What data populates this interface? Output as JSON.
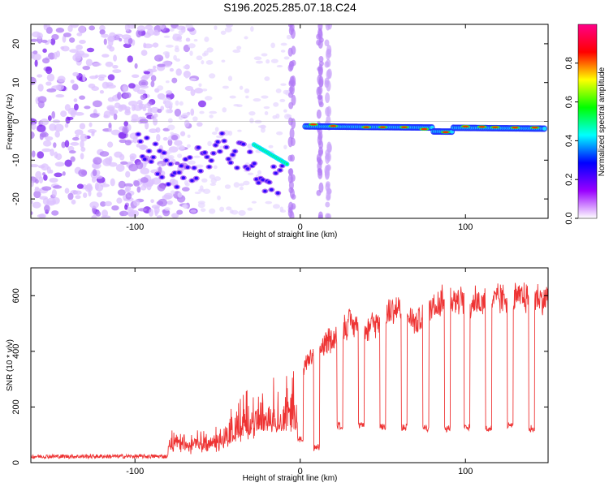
{
  "chart_data": [
    {
      "type": "heatmap",
      "title": "S196.2025.285.07.18.C24",
      "xlabel": "Height of straight line (km)",
      "ylabel": "Frequency (Hz)",
      "xlim": [
        -163,
        150
      ],
      "ylim": [
        -25,
        25
      ],
      "xticks": [
        -100,
        0,
        100
      ],
      "xtick_labels": [
        "-100",
        "0",
        "100"
      ],
      "yticks": [
        -20,
        -10,
        0,
        10,
        20
      ],
      "ytick_labels": [
        "-20",
        "-10",
        "0",
        "10",
        "20"
      ],
      "colorbar": {
        "label": "Normalized spectral amplitude",
        "range": [
          0,
          1
        ],
        "ticks": [
          0.0,
          0.2,
          0.4,
          0.6,
          0.8
        ],
        "tick_labels": [
          "0.0",
          "0.2",
          "0.4",
          "0.6",
          "0.8"
        ],
        "colors": [
          "#ffffff",
          "#9900ff",
          "#0000ff",
          "#00ffff",
          "#00ff00",
          "#ffff00",
          "#ff0000",
          "#ff0088"
        ]
      },
      "ridge": {
        "description_points_x": [
          -95,
          -80,
          -70,
          -60,
          -45,
          -35,
          -25,
          -15,
          -10,
          5,
          10,
          20,
          40,
          60,
          75,
          85,
          95,
          110,
          130,
          148
        ],
        "description_points_freq": [
          -13,
          -9,
          -11,
          -13,
          -7,
          -3,
          -9,
          -11,
          -10,
          -1,
          -1,
          -1.5,
          -1.5,
          -1.5,
          -2,
          -3,
          -1.5,
          -1.5,
          -2,
          -2
        ]
      }
    },
    {
      "type": "line",
      "xlabel": "Height of straight line (km)",
      "ylabel": "SNR (10 * v/v)",
      "xlim": [
        -163,
        150
      ],
      "ylim": [
        0,
        700
      ],
      "xticks": [
        -100,
        0,
        100
      ],
      "xtick_labels": [
        "-100",
        "0",
        "100"
      ],
      "yticks": [
        0,
        200,
        400,
        600
      ],
      "ytick_labels": [
        "0",
        "200",
        "400",
        "600"
      ],
      "line_color": "#ee3333",
      "envelope": {
        "x": [
          -163,
          -100,
          -85,
          -75,
          -65,
          -50,
          -40,
          -30,
          -20,
          -10,
          0,
          10,
          20,
          30,
          40,
          50,
          60,
          70,
          80,
          90,
          100,
          110,
          120,
          130,
          140,
          150
        ],
        "y": [
          20,
          25,
          40,
          120,
          90,
          120,
          200,
          280,
          300,
          320,
          380,
          450,
          500,
          560,
          530,
          580,
          620,
          560,
          620,
          660,
          640,
          640,
          650,
          650,
          660,
          650
        ]
      },
      "dips_x": [
        0,
        10,
        24,
        37,
        50,
        63,
        76,
        89,
        101,
        114,
        127,
        140
      ],
      "dips_y": [
        70,
        40,
        120,
        120,
        115,
        115,
        110,
        110,
        115,
        110,
        120,
        110
      ]
    }
  ]
}
